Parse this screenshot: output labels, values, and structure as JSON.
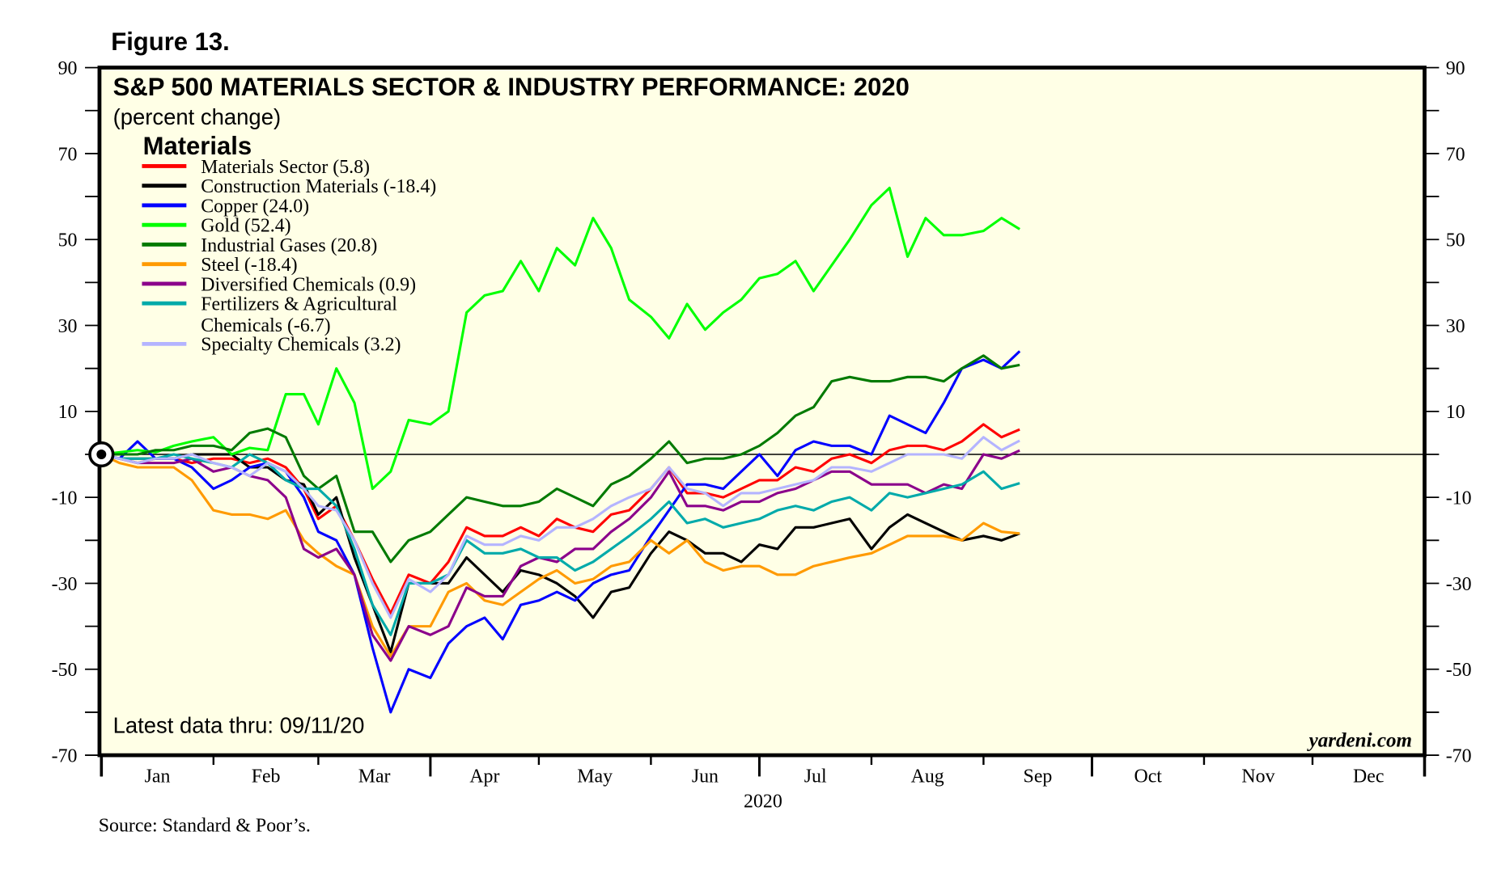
{
  "figure_label": "Figure 13.",
  "chart_data": {
    "type": "line",
    "title": "S&P 500 MATERIALS SECTOR & INDUSTRY PERFORMANCE: 2020",
    "subtitle": "(percent change)",
    "legend_title": "Materials",
    "legend_placement": "top-left",
    "ylim": [
      -70,
      90
    ],
    "y_ticks": [
      90,
      70,
      50,
      30,
      10,
      -10,
      -30,
      -50,
      -70
    ],
    "x_range": [
      "2020-01-01",
      "2020-12-31"
    ],
    "x_tick_labels": [
      "Jan",
      "Feb",
      "Mar",
      "Apr",
      "May",
      "Jun",
      "Jul",
      "Aug",
      "Sep",
      "Oct",
      "Nov",
      "Dec"
    ],
    "xlabel": "2020",
    "reference_line": 0,
    "grid": false,
    "x": [
      "2020-01-01",
      "2020-01-06",
      "2020-01-11",
      "2020-01-16",
      "2020-01-21",
      "2020-01-26",
      "2020-02-01",
      "2020-02-06",
      "2020-02-11",
      "2020-02-16",
      "2020-02-21",
      "2020-02-26",
      "2020-03-01",
      "2020-03-06",
      "2020-03-11",
      "2020-03-16",
      "2020-03-21",
      "2020-03-26",
      "2020-04-01",
      "2020-04-06",
      "2020-04-11",
      "2020-04-16",
      "2020-04-21",
      "2020-04-26",
      "2020-05-01",
      "2020-05-06",
      "2020-05-11",
      "2020-05-16",
      "2020-05-21",
      "2020-05-26",
      "2020-06-01",
      "2020-06-06",
      "2020-06-11",
      "2020-06-16",
      "2020-06-21",
      "2020-06-26",
      "2020-07-01",
      "2020-07-06",
      "2020-07-11",
      "2020-07-16",
      "2020-07-21",
      "2020-07-26",
      "2020-08-01",
      "2020-08-06",
      "2020-08-11",
      "2020-08-16",
      "2020-08-21",
      "2020-08-26",
      "2020-09-01",
      "2020-09-06",
      "2020-09-11"
    ],
    "series": [
      {
        "name": "Materials Sector (5.8)",
        "color": "#ff0000",
        "values": [
          0,
          -1,
          -2,
          -1,
          -1,
          -2,
          -1,
          -1,
          -2,
          -1,
          -3,
          -8,
          -15,
          -12,
          -20,
          -29,
          -37,
          -28,
          -30,
          -25,
          -17,
          -19,
          -19,
          -17,
          -19,
          -15,
          -17,
          -18,
          -14,
          -13,
          -8,
          -3,
          -9,
          -9,
          -10,
          -8,
          -6,
          -6,
          -3,
          -4,
          -1,
          0,
          -2,
          1,
          2,
          2,
          1,
          3,
          7,
          4,
          5.8
        ]
      },
      {
        "name": "Construction Materials (-18.4)",
        "color": "#000000",
        "values": [
          0,
          -1,
          -1,
          -1,
          -1,
          0,
          0,
          0,
          -3,
          -3,
          -6,
          -7,
          -14,
          -10,
          -24,
          -35,
          -46,
          -30,
          -30,
          -30,
          -24,
          -28,
          -32,
          -27,
          -28,
          -30,
          -33,
          -38,
          -32,
          -31,
          -23,
          -18,
          -20,
          -23,
          -23,
          -25,
          -21,
          -22,
          -17,
          -17,
          -16,
          -15,
          -22,
          -17,
          -14,
          -16,
          -18,
          -20,
          -19,
          -20,
          -18.4
        ]
      },
      {
        "name": "Copper (24.0)",
        "color": "#0000ff",
        "values": [
          0,
          -1,
          3,
          -1,
          -1,
          -3,
          -8,
          -6,
          -3,
          -2,
          -4,
          -10,
          -18,
          -20,
          -28,
          -45,
          -60,
          -50,
          -52,
          -44,
          -40,
          -38,
          -43,
          -35,
          -34,
          -32,
          -34,
          -30,
          -28,
          -27,
          -19,
          -13,
          -7,
          -7,
          -8,
          -4,
          0,
          -5,
          1,
          3,
          2,
          2,
          0,
          9,
          7,
          5,
          12,
          20,
          22,
          20,
          24
        ]
      },
      {
        "name": "Gold (52.4)",
        "color": "#00ff00",
        "values": [
          0,
          0.5,
          1,
          0.5,
          2,
          3,
          4,
          0,
          1.5,
          1,
          14,
          14,
          7,
          20,
          12,
          -8,
          -4,
          8,
          7,
          10,
          33,
          37,
          38,
          45,
          38,
          48,
          44,
          55,
          48,
          36,
          32,
          27,
          35,
          29,
          33,
          36,
          41,
          42,
          45,
          38,
          44,
          50,
          58,
          62,
          46,
          55,
          51,
          51,
          52,
          55,
          52.4
        ]
      },
      {
        "name": "Industrial Gases (20.8)",
        "color": "#007a00",
        "values": [
          0,
          0,
          0,
          1,
          1,
          2,
          2,
          1,
          5,
          6,
          4,
          -5,
          -8,
          -5,
          -18,
          -18,
          -25,
          -20,
          -18,
          -14,
          -10,
          -11,
          -12,
          -12,
          -11,
          -8,
          -10,
          -12,
          -7,
          -5,
          -1,
          3,
          -2,
          -1,
          -1,
          0,
          2,
          5,
          9,
          11,
          17,
          18,
          17,
          17,
          18,
          18,
          17,
          20,
          23,
          20,
          20.8
        ]
      },
      {
        "name": "Steel (-18.4)",
        "color": "#ff9a00",
        "values": [
          0,
          -2,
          -3,
          -3,
          -3,
          -6,
          -13,
          -14,
          -14,
          -15,
          -13,
          -20,
          -23,
          -26,
          -28,
          -40,
          -47,
          -40,
          -40,
          -32,
          -30,
          -34,
          -35,
          -32,
          -29,
          -27,
          -30,
          -29,
          -26,
          -25,
          -20,
          -23,
          -20,
          -25,
          -27,
          -26,
          -26,
          -28,
          -28,
          -26,
          -25,
          -24,
          -23,
          -21,
          -19,
          -19,
          -19,
          -20,
          -16,
          -18,
          -18.4
        ]
      },
      {
        "name": "Diversified Chemicals (0.9)",
        "color": "#8b008b",
        "values": [
          0,
          -1,
          -2,
          -2,
          -2,
          -1,
          -4,
          -3,
          -5,
          -6,
          -10,
          -22,
          -24,
          -22,
          -28,
          -42,
          -48,
          -40,
          -42,
          -40,
          -31,
          -33,
          -33,
          -26,
          -24,
          -25,
          -22,
          -22,
          -18,
          -15,
          -10,
          -4,
          -12,
          -12,
          -13,
          -11,
          -11,
          -9,
          -8,
          -6,
          -4,
          -4,
          -7,
          -7,
          -7,
          -9,
          -7,
          -8,
          0,
          -1,
          0.9
        ]
      },
      {
        "name": "Fertilizers & Agricultural Chemicals (-6.7)",
        "label_lines": [
          "Fertilizers & Agricultural",
          "Chemicals (-6.7)"
        ],
        "color": "#00aaaa",
        "values": [
          0,
          -1,
          -1,
          -1,
          0,
          -1,
          -2,
          -3,
          0,
          -2,
          -6,
          -8,
          -8,
          -12,
          -22,
          -35,
          -42,
          -30,
          -30,
          -28,
          -20,
          -23,
          -23,
          -22,
          -24,
          -24,
          -27,
          -25,
          -22,
          -19,
          -15,
          -11,
          -16,
          -15,
          -17,
          -16,
          -15,
          -13,
          -12,
          -13,
          -11,
          -10,
          -13,
          -9,
          -10,
          -9,
          -8,
          -7,
          -4,
          -8,
          -6.7
        ]
      },
      {
        "name": "Specialty Chemicals (3.2)",
        "color": "#b4b4ff",
        "values": [
          0,
          -1,
          -2,
          -1,
          -1,
          0,
          -2,
          -3,
          -5,
          -2,
          -4,
          -8,
          -12,
          -13,
          -20,
          -30,
          -38,
          -29,
          -32,
          -28,
          -19,
          -21,
          -21,
          -19,
          -20,
          -17,
          -17,
          -15,
          -12,
          -10,
          -8,
          -3,
          -8,
          -9,
          -12,
          -9,
          -9,
          -8,
          -7,
          -6,
          -3,
          -3,
          -4,
          -2,
          0,
          0,
          0,
          -1,
          4,
          1,
          3.2
        ]
      }
    ]
  },
  "latest_data": "Latest data thru: 09/11/20",
  "brand": "yardeni.com",
  "source": "Source: Standard & Poor’s.",
  "colors": {
    "plot_background": "#ffffe6"
  }
}
